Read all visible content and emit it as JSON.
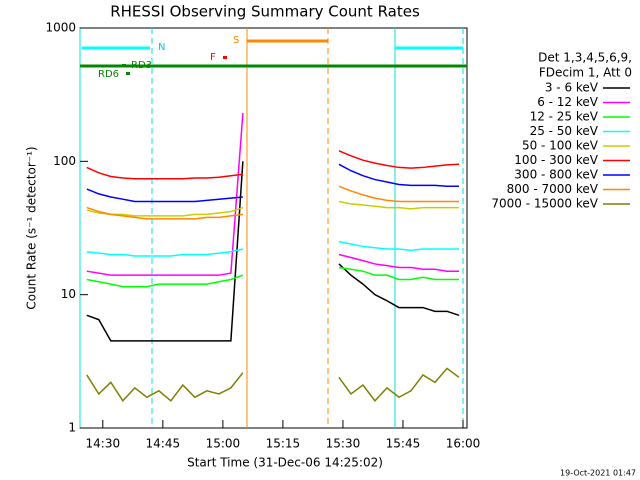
{
  "chart_data": {
    "type": "line",
    "title": "RHESSI Observing Summary Count Rates",
    "xlabel": "Start Time (31-Dec-06 14:25:02)",
    "ylabel": "Count Rate (s⁻¹ detector⁻¹)",
    "legend_header": [
      "Det 1,3,4,5,6,9,",
      "FDecim 1, Att 0"
    ],
    "flag_labels": [
      "N",
      "S",
      "F",
      "RD6",
      "RD3"
    ],
    "timestamp": "19-Oct-2021 01:47",
    "log_y": true,
    "legend": "right",
    "xlim": [
      864.3,
      961
    ],
    "xticks": [
      {
        "value": 870,
        "label": "14:30"
      },
      {
        "value": 885,
        "label": "14:45"
      },
      {
        "value": 900,
        "label": "15:00"
      },
      {
        "value": 915,
        "label": "15:15"
      },
      {
        "value": 930,
        "label": "15:30"
      },
      {
        "value": 945,
        "label": "15:45"
      },
      {
        "value": 960,
        "label": "16:00"
      }
    ],
    "ylim": [
      1,
      1000
    ],
    "yticks": [
      1,
      10,
      100,
      1000
    ],
    "x": [
      866,
      869,
      872,
      875,
      878,
      881,
      884,
      887,
      890,
      893,
      896,
      899,
      902,
      905,
      908,
      911,
      914,
      917,
      920,
      923,
      926,
      929,
      932,
      935,
      938,
      941,
      944,
      947,
      950,
      953,
      956,
      959
    ],
    "series": [
      {
        "name": "3 - 6 keV",
        "color": "#000000",
        "values": [
          7,
          6.5,
          4.5,
          4.5,
          4.5,
          4.5,
          4.5,
          4.5,
          4.5,
          4.5,
          4.5,
          4.5,
          4.5,
          100,
          null,
          null,
          null,
          null,
          null,
          null,
          null,
          17,
          14,
          12,
          10,
          9,
          8,
          8,
          8,
          7.5,
          7.5,
          7
        ]
      },
      {
        "name": "6 - 12 keV",
        "color": "#ff00ff",
        "values": [
          15,
          14.5,
          14,
          14,
          14,
          14,
          14,
          14,
          14,
          14,
          14,
          14,
          14.5,
          230,
          null,
          null,
          null,
          null,
          null,
          null,
          null,
          20,
          19,
          18,
          17,
          16.5,
          16,
          16,
          15.5,
          15.5,
          15,
          15
        ]
      },
      {
        "name": "12 - 25 keV",
        "color": "#00ff00",
        "values": [
          13,
          12.5,
          12,
          11.5,
          11.5,
          11.5,
          12,
          12,
          12,
          12,
          12,
          12.5,
          13,
          14,
          null,
          null,
          null,
          null,
          null,
          null,
          null,
          16,
          15.5,
          15,
          14,
          14,
          13,
          13,
          13.5,
          13,
          13,
          13
        ]
      },
      {
        "name": "25 - 50 keV",
        "color": "#00ffff",
        "values": [
          21,
          20.5,
          20,
          20,
          19.5,
          19.5,
          19.5,
          19.5,
          20,
          20,
          20,
          20.5,
          21,
          22,
          null,
          null,
          null,
          null,
          null,
          null,
          null,
          25,
          24,
          23,
          22.5,
          22,
          22,
          21.5,
          22,
          22,
          22,
          22
        ]
      },
      {
        "name": "50 - 100 keV",
        "color": "#cccc00",
        "values": [
          43,
          41,
          40,
          40,
          39,
          39,
          39,
          39,
          39,
          40,
          40,
          41,
          42,
          45,
          null,
          null,
          null,
          null,
          null,
          null,
          null,
          50,
          48,
          47,
          46,
          45,
          45,
          44,
          45,
          45,
          45,
          45
        ]
      },
      {
        "name": "100 - 300 keV",
        "color": "#ff0000",
        "values": [
          90,
          82,
          77,
          75,
          74,
          74,
          74,
          74,
          74,
          75,
          75,
          76,
          78,
          80,
          null,
          null,
          null,
          null,
          null,
          null,
          null,
          120,
          110,
          102,
          97,
          93,
          90,
          89,
          90,
          92,
          94,
          95
        ]
      },
      {
        "name": "300 - 800 keV",
        "color": "#0000ff",
        "values": [
          62,
          57,
          54,
          52,
          50,
          50,
          50,
          50,
          50,
          50,
          51,
          52,
          53,
          54,
          null,
          null,
          null,
          null,
          null,
          null,
          null,
          95,
          85,
          78,
          73,
          70,
          67,
          66,
          66,
          66,
          65,
          65
        ]
      },
      {
        "name": "800 - 7000 keV",
        "color": "#ff8800",
        "values": [
          45,
          42,
          40,
          39,
          38,
          37,
          37,
          37,
          37,
          37,
          38,
          38,
          39,
          40,
          null,
          null,
          null,
          null,
          null,
          null,
          null,
          65,
          60,
          56,
          53,
          51,
          50,
          50,
          50,
          50,
          50,
          50
        ]
      },
      {
        "name": "7000 - 15000 keV",
        "color": "#808000",
        "values": [
          2.5,
          1.8,
          2.2,
          1.6,
          2.0,
          1.7,
          1.9,
          1.6,
          2.1,
          1.7,
          1.9,
          1.8,
          2.0,
          2.6,
          null,
          null,
          null,
          null,
          null,
          null,
          null,
          2.4,
          1.8,
          2.1,
          1.6,
          2.0,
          1.7,
          1.9,
          2.5,
          2.2,
          2.8,
          2.4
        ]
      }
    ]
  }
}
